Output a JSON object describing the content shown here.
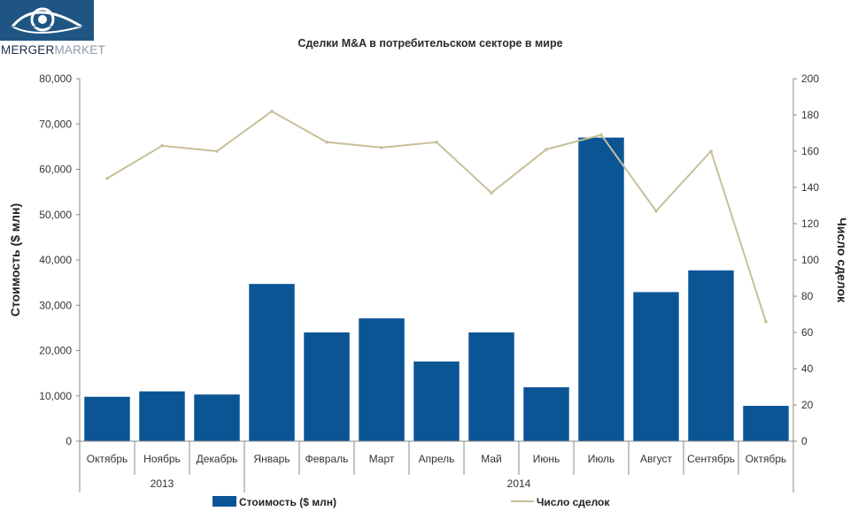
{
  "brand": {
    "name_dark": "MERGER",
    "name_light": "MARKET"
  },
  "chart_data": {
    "type": "bar",
    "title": "Сделки M&A в потребительском секторе в мире",
    "categories": [
      "Октябрь",
      "Ноябрь",
      "Декабрь",
      "Январь",
      "Февраль",
      "Март",
      "Апрель",
      "Май",
      "Июнь",
      "Июль",
      "Август",
      "Сентябрь",
      "Октябрь"
    ],
    "year_groups": [
      {
        "label": "2013",
        "count": 3
      },
      {
        "label": "2014",
        "count": 10
      }
    ],
    "series": [
      {
        "name": "Стоимость ($ млн)",
        "type": "bar",
        "axis": "left",
        "color": "#0b5595",
        "values": [
          9800,
          11000,
          10300,
          34700,
          24000,
          27100,
          17600,
          24000,
          11900,
          67000,
          32900,
          37700,
          7800
        ]
      },
      {
        "name": "Число сделок",
        "type": "line",
        "axis": "right",
        "color": "#c8c09a",
        "values": [
          145,
          163,
          160,
          182,
          165,
          162,
          165,
          137,
          161,
          169,
          127,
          160,
          66
        ]
      }
    ],
    "ylabel": "Стоимость  ($ млн)",
    "y2label": "Число сделок",
    "ylim": [
      0,
      80000
    ],
    "y2lim": [
      0,
      200
    ],
    "yticks": [
      "0",
      "10,000",
      "20,000",
      "30,000",
      "40,000",
      "50,000",
      "60,000",
      "70,000",
      "80,000"
    ],
    "y2ticks": [
      "0",
      "20",
      "40",
      "60",
      "80",
      "100",
      "120",
      "140",
      "160",
      "180",
      "200"
    ],
    "grid": false,
    "legend_position": "bottom"
  }
}
